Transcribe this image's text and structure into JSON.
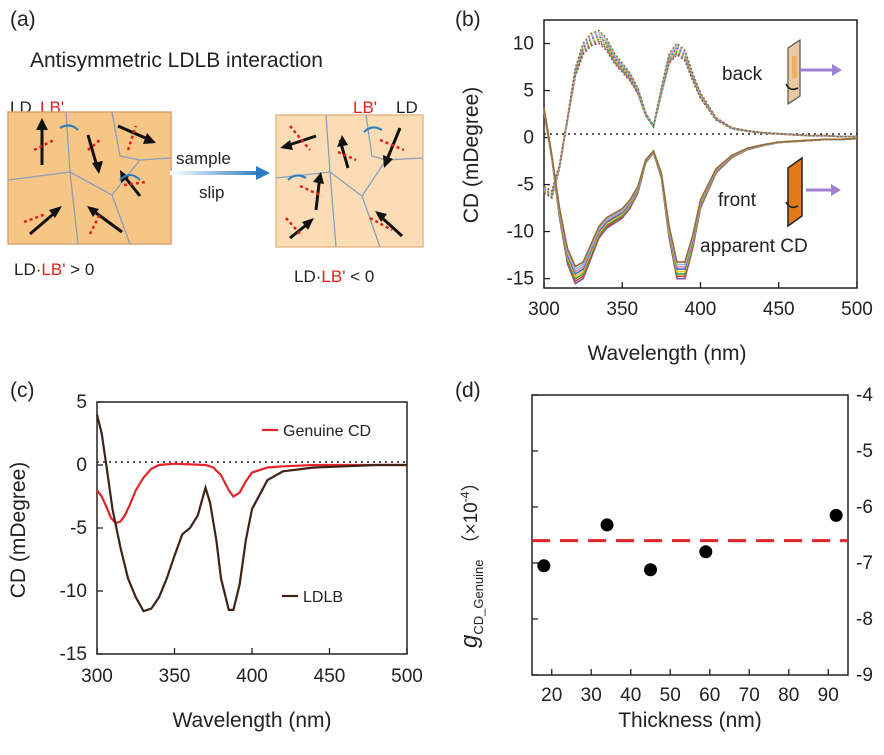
{
  "chart_data": [
    {
      "panel": "(a)",
      "type": "other",
      "title": "Antisymmetric LDLB interaction",
      "left_labels": {
        "ld": "LD",
        "lb": "LB'"
      },
      "right_labels": {
        "lb": "LB'",
        "ld": "LD"
      },
      "arrow_label_1": "sample",
      "arrow_label_2": "slip",
      "left_caption": {
        "pre": "LD·",
        "lb": "LB'",
        "post": " > 0"
      },
      "right_caption": {
        "pre": "LD·",
        "lb": "LB'",
        "post": " < 0"
      },
      "colors": {
        "left_fill": "#f7c585",
        "right_fill": "#fbdcb5",
        "red": "#e0201b",
        "blue": "#2a7bbf"
      }
    },
    {
      "panel": "(b)",
      "type": "line",
      "xlabel": "Wavelength (nm)",
      "ylabel": "CD (mDegree)",
      "xlim": [
        300,
        500
      ],
      "ylim": [
        -16,
        12.5
      ],
      "xticks": [
        300,
        350,
        400,
        450,
        500
      ],
      "yticks": [
        10,
        5,
        0,
        -5,
        -10,
        -15
      ],
      "annotations": {
        "back": "back",
        "front": "front",
        "apparent": "apparent CD"
      },
      "series": [
        {
          "group": "back",
          "x": [
            300,
            305,
            310,
            315,
            320,
            325,
            330,
            335,
            340,
            345,
            350,
            355,
            360,
            365,
            370,
            375,
            380,
            385,
            390,
            395,
            400,
            410,
            420,
            430,
            440,
            450,
            460,
            470,
            480,
            490,
            500
          ],
          "values": [
            -5.5,
            -6,
            -3,
            2,
            7,
            9.5,
            10.5,
            10.8,
            10,
            8.5,
            7.5,
            6.5,
            5,
            2.5,
            1.2,
            5,
            8.5,
            9.5,
            8.8,
            6.5,
            4.5,
            2,
            1,
            0.7,
            0.5,
            0.4,
            0.3,
            0.2,
            0.2,
            0.1,
            0.1
          ]
        },
        {
          "group": "front",
          "x": [
            300,
            305,
            310,
            315,
            320,
            325,
            330,
            335,
            340,
            345,
            350,
            355,
            360,
            365,
            370,
            375,
            380,
            385,
            390,
            395,
            400,
            410,
            420,
            430,
            440,
            450,
            460,
            470,
            480,
            490,
            500
          ],
          "values": [
            3,
            -2,
            -8,
            -12.5,
            -14.5,
            -14,
            -12,
            -10,
            -9,
            -8.5,
            -8,
            -7,
            -5.5,
            -2.5,
            -1.5,
            -4,
            -10,
            -14,
            -14,
            -11,
            -7,
            -3.5,
            -2,
            -1.2,
            -0.8,
            -0.5,
            -0.4,
            -0.3,
            -0.2,
            -0.2,
            -0.1
          ]
        }
      ],
      "colors": [
        "#7b5aa6",
        "#d9482b",
        "#3aa54a",
        "#f2c318",
        "#3a6fc4",
        "#e87fb0",
        "#7ec3d7",
        "#9b6b2f"
      ]
    },
    {
      "panel": "(c)",
      "type": "line",
      "xlabel": "Wavelength (nm)",
      "ylabel": "CD (mDegree)",
      "xlim": [
        300,
        500
      ],
      "ylim": [
        -15,
        5
      ],
      "xticks": [
        300,
        350,
        400,
        450,
        500
      ],
      "yticks": [
        5,
        0,
        -5,
        -10,
        -15
      ],
      "series": [
        {
          "name": "Genuine CD",
          "color": "#e3242b",
          "x": [
            300,
            303,
            306,
            309,
            312,
            315,
            318,
            321,
            325,
            330,
            335,
            340,
            350,
            360,
            370,
            375,
            380,
            385,
            388,
            392,
            396,
            400,
            410,
            420,
            440,
            460,
            480,
            500
          ],
          "values": [
            -2,
            -2.5,
            -3.3,
            -4.2,
            -4.6,
            -4.5,
            -4,
            -3.2,
            -2,
            -1,
            -0.3,
            0,
            0.1,
            0.05,
            0,
            -0.2,
            -0.8,
            -2,
            -2.5,
            -2.2,
            -1.3,
            -0.6,
            -0.2,
            -0.1,
            0,
            0,
            0,
            0
          ]
        },
        {
          "name": "LDLB",
          "color": "#3d2318",
          "x": [
            300,
            303,
            306,
            310,
            315,
            320,
            325,
            330,
            335,
            340,
            345,
            350,
            355,
            360,
            365,
            370,
            373,
            377,
            380,
            385,
            388,
            392,
            396,
            400,
            410,
            420,
            440,
            460,
            480,
            500
          ],
          "values": [
            4,
            2.5,
            0,
            -3.5,
            -6.5,
            -9,
            -10.5,
            -11.6,
            -11.4,
            -10.5,
            -9,
            -7.2,
            -5.5,
            -5,
            -4,
            -1.8,
            -3,
            -6,
            -9,
            -11.5,
            -11.5,
            -9.5,
            -6,
            -3.5,
            -1.2,
            -0.5,
            -0.2,
            -0.1,
            0,
            0
          ]
        }
      ]
    },
    {
      "panel": "(d)",
      "type": "scatter",
      "xlabel": "Thickness (nm)",
      "ylabel": {
        "g": "g",
        "sub": "CD_Genuine",
        "factor": "（×10",
        "exp": "-4",
        "close": "）"
      },
      "xlim": [
        15,
        95
      ],
      "ylim": [
        -9,
        -4
      ],
      "xticks": [
        20,
        30,
        40,
        50,
        60,
        70,
        80,
        90
      ],
      "yticks": [
        -4,
        -5,
        -6,
        -7,
        -8,
        -9
      ],
      "points": [
        {
          "x": 18,
          "y": -7.05
        },
        {
          "x": 34,
          "y": -6.32
        },
        {
          "x": 45,
          "y": -7.12
        },
        {
          "x": 59,
          "y": -6.8
        },
        {
          "x": 92,
          "y": -6.15
        }
      ],
      "mean_line": -6.6,
      "colors": {
        "points": "#000000",
        "mean": "#e3242b"
      }
    }
  ]
}
